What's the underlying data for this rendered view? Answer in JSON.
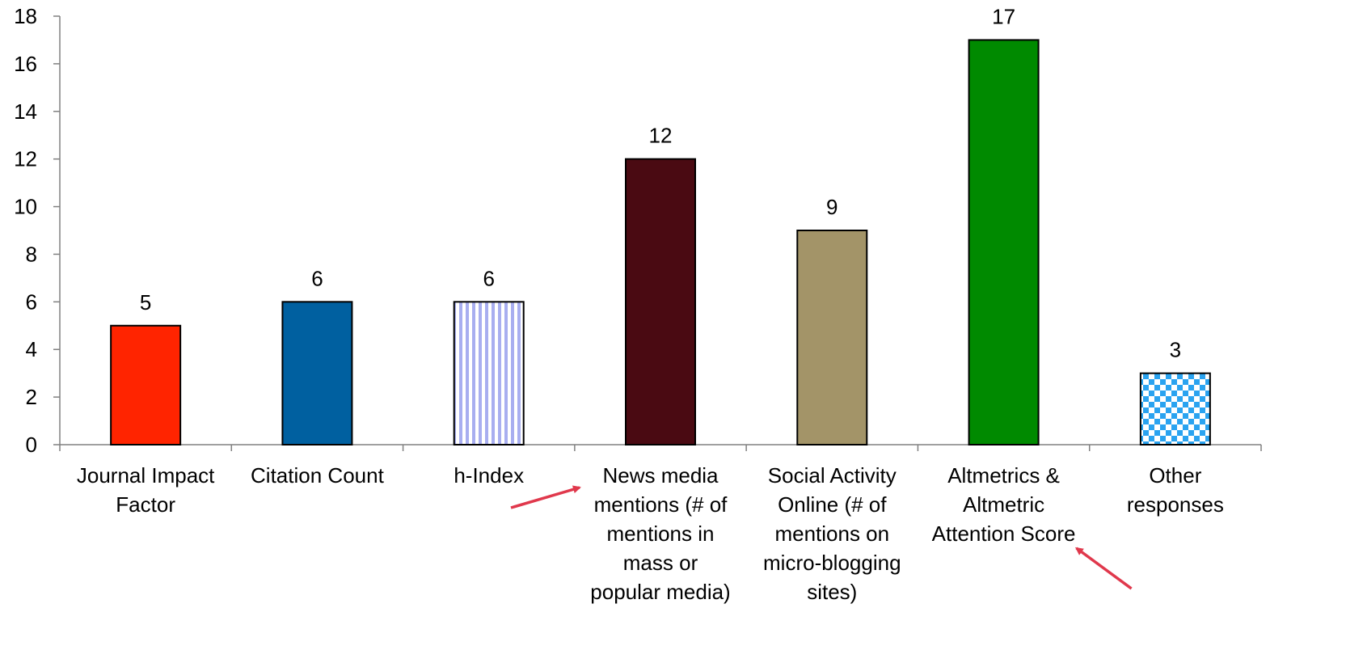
{
  "chart_data": {
    "type": "bar",
    "title": "",
    "xlabel": "",
    "ylabel": "",
    "ylim": [
      0,
      18
    ],
    "yticks": [
      0,
      2,
      4,
      6,
      8,
      10,
      12,
      14,
      16,
      18
    ],
    "grid": false,
    "legend": "none",
    "categories": [
      [
        "Journal Impact",
        "Factor"
      ],
      [
        "Citation Count"
      ],
      [
        "h-Index"
      ],
      [
        "News media",
        "mentions (# of",
        "mentions in",
        "mass or",
        "popular media)"
      ],
      [
        "Social Activity",
        "Online (# of",
        "mentions on",
        "micro-blogging",
        "sites)"
      ],
      [
        "Altmetrics &",
        "Altmetric",
        "Attention Score"
      ],
      [
        "Other",
        "responses"
      ]
    ],
    "values": [
      5,
      6,
      6,
      12,
      9,
      17,
      3
    ],
    "bar_fills": [
      "#ff2400",
      "#0060a0",
      "vertical-stripes",
      "#4a0a12",
      "#a39468",
      "#008a00",
      "checkerboard"
    ],
    "pattern_colors": {
      "stripes": "#a8aef0",
      "checker": "#2aa3f0"
    },
    "annotations": [
      {
        "type": "arrow",
        "color": "#e0384c",
        "points_to": "News media mentions (# of mentions in mass or popular media)"
      },
      {
        "type": "arrow",
        "color": "#e0384c",
        "points_to": "Altmetrics & Altmetric Attention Score"
      }
    ]
  }
}
